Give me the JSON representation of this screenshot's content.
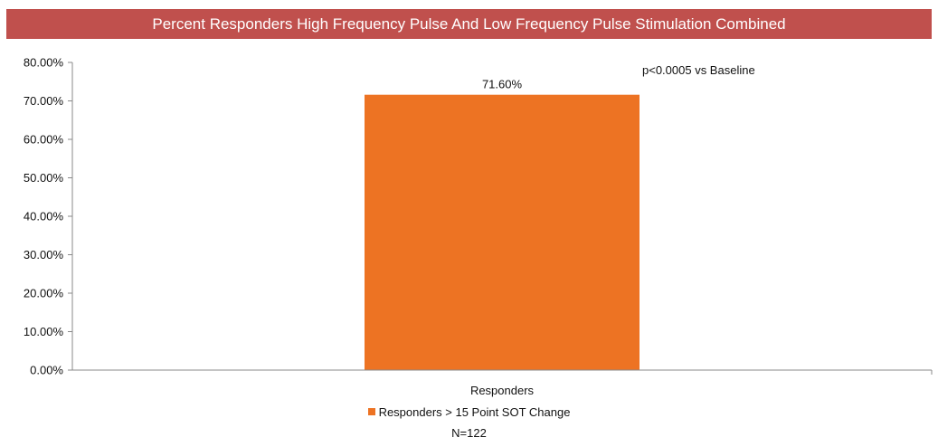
{
  "chart_data": {
    "type": "bar",
    "title": "Percent Responders High Frequency Pulse And Low Frequency Pulse Stimulation Combined",
    "categories": [
      "Responders"
    ],
    "series": [
      {
        "name": "Responders > 15 Point SOT Change",
        "values": [
          71.6
        ],
        "data_labels": [
          "71.60%"
        ],
        "color": "#ed7323"
      }
    ],
    "ylim": [
      0,
      80
    ],
    "yticks": [
      0,
      10,
      20,
      30,
      40,
      50,
      60,
      70,
      80
    ],
    "ytick_labels": [
      "0.00%",
      "10.00%",
      "20.00%",
      "30.00%",
      "40.00%",
      "50.00%",
      "60.00%",
      "70.00%",
      "80.00%"
    ],
    "annotation": "p<0.0005 vs Baseline",
    "footnote": "N=122",
    "grid": false,
    "legend_position": "bottom",
    "title_background": "#c0504d"
  }
}
